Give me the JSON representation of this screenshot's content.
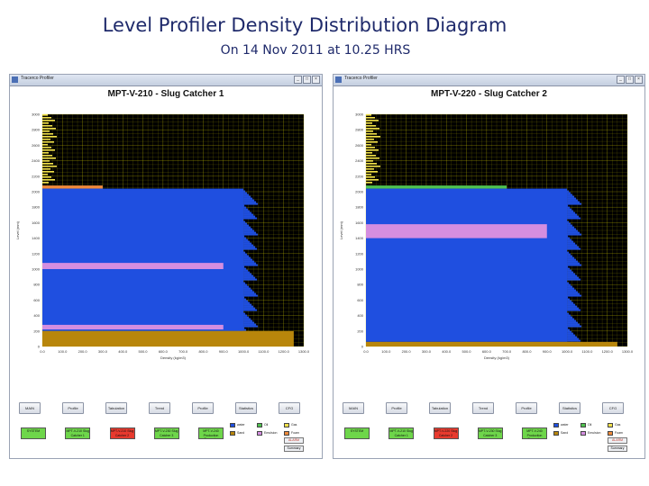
{
  "slide": {
    "title": "Level Profiler Density Distribution Diagram",
    "subtitle": "On 14 Nov 2011 at 10.25 HRS"
  },
  "colors": {
    "water": "#1f4fe0",
    "emulsion": "#d48ee0",
    "oil": "#4fc24f",
    "foam": "#f08a3a",
    "gas": "#f2e24a",
    "sand": "#b8860b",
    "plot_bg": "#000000",
    "grid": "#c9c200"
  },
  "nav_buttons": [
    "MAIN",
    "Profile",
    "Tabulation",
    "Trend",
    "Profile",
    "Statistics",
    "CFG"
  ],
  "legend": [
    {
      "label": "water",
      "color": "#1f4fe0"
    },
    {
      "label": "Oil",
      "color": "#4fc24f"
    },
    {
      "label": "Gas",
      "color": "#f2e24a"
    },
    {
      "label": "Sand",
      "color": "#b8860b"
    },
    {
      "label": "Emulsion",
      "color": "#d48ee0"
    },
    {
      "label": "Foam",
      "color": "#f08a3a"
    }
  ],
  "panels": [
    {
      "window_title": "Tracerco Profiler",
      "vessel_title": "MPT-V-210 - Slug Catcher 1",
      "y_axis_label": "Level (mm)",
      "x_axis_label": "Density (kg/m3)",
      "status_boxes": [
        {
          "label": "SYSTEM",
          "color": "#6ed64a"
        },
        {
          "label": "MPT-V-210 Slug Catcher 1",
          "color": "#6ed64a"
        },
        {
          "label": "MPT-V-210 Slug Catcher 2",
          "color": "#e83a2e"
        },
        {
          "label": "MPT-V-230 Slug Catcher 3",
          "color": "#6ed64a"
        },
        {
          "label": "MPT-V-240 Production Separator",
          "color": "#6ed64a"
        }
      ],
      "alarm_label": "ALARM",
      "summary_label": "Summary"
    },
    {
      "window_title": "Tracerco Profiler",
      "vessel_title": "MPT-V-220 - Slug Catcher 2",
      "y_axis_label": "Level (mm)",
      "x_axis_label": "Density (kg/m3)",
      "status_boxes": [
        {
          "label": "SYSTEM",
          "color": "#6ed64a"
        },
        {
          "label": "MPT-V-210 Slug Catcher 1",
          "color": "#6ed64a"
        },
        {
          "label": "MPT-V-220 Slug Catcher 2",
          "color": "#e83a2e"
        },
        {
          "label": "MPT-V-230 Slug Catcher 3",
          "color": "#6ed64a"
        },
        {
          "label": "MPT-V-240 Production Separator",
          "color": "#6ed64a"
        }
      ],
      "alarm_label": "ALARM",
      "summary_label": "Summary"
    }
  ],
  "chart_data": [
    {
      "type": "bar",
      "orientation": "horizontal-profile",
      "title": "MPT-V-210 - Slug Catcher 1",
      "xlabel": "Density (kg/m3)",
      "ylabel": "Level (mm)",
      "xlim": [
        0,
        1300
      ],
      "ylim": [
        0,
        3000
      ],
      "x_ticks": [
        "0.0",
        "100.0",
        "200.0",
        "300.0",
        "400.0",
        "500.0",
        "600.0",
        "700.0",
        "800.0",
        "900.0",
        "1000.0",
        "1100.0",
        "1200.0",
        "1300.0"
      ],
      "y_ticks": [
        "3000",
        "2800",
        "2600",
        "2400",
        "2200",
        "2000",
        "1800",
        "1600",
        "1400",
        "1200",
        "1000",
        "800",
        "600",
        "400",
        "200",
        "0"
      ],
      "grid": true,
      "layers": [
        {
          "name": "gas",
          "from": 2080,
          "to": 3000,
          "density": 50
        },
        {
          "name": "foam",
          "from": 2040,
          "to": 2080,
          "density": 300
        },
        {
          "name": "water",
          "from": 200,
          "to": 2040,
          "density": 1000
        },
        {
          "name": "emulsion",
          "from": 1000,
          "to": 1080,
          "density": 900
        },
        {
          "name": "emulsion",
          "from": 220,
          "to": 280,
          "density": 900
        },
        {
          "name": "sand",
          "from": 0,
          "to": 200,
          "density": 1250
        }
      ]
    },
    {
      "type": "bar",
      "orientation": "horizontal-profile",
      "title": "MPT-V-220 - Slug Catcher 2",
      "xlabel": "Density (kg/m3)",
      "ylabel": "Level (mm)",
      "xlim": [
        0,
        1300
      ],
      "ylim": [
        0,
        3000
      ],
      "x_ticks": [
        "0.0",
        "100.0",
        "200.0",
        "300.0",
        "400.0",
        "500.0",
        "600.0",
        "700.0",
        "800.0",
        "900.0",
        "1000.0",
        "1100.0",
        "1200.0",
        "1300.0"
      ],
      "y_ticks": [
        "3000",
        "2800",
        "2600",
        "2400",
        "2200",
        "2000",
        "1800",
        "1600",
        "1400",
        "1200",
        "1000",
        "800",
        "600",
        "400",
        "200",
        "0"
      ],
      "grid": true,
      "layers": [
        {
          "name": "gas",
          "from": 2080,
          "to": 3000,
          "density": 50
        },
        {
          "name": "oil",
          "from": 2040,
          "to": 2080,
          "density": 700
        },
        {
          "name": "water",
          "from": 60,
          "to": 2040,
          "density": 1000
        },
        {
          "name": "emulsion",
          "from": 1400,
          "to": 1580,
          "density": 900
        },
        {
          "name": "sand",
          "from": 0,
          "to": 60,
          "density": 1250
        }
      ]
    }
  ]
}
